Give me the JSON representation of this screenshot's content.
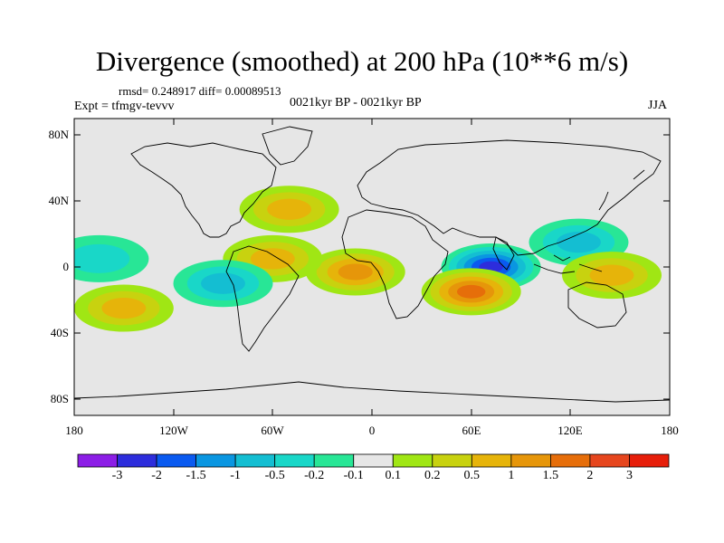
{
  "title": "Divergence (smoothed) at 200 hPa (10**6 m/s)",
  "stats": "rmsd= 0.248917 diff= 0.00089513",
  "experiment": "Expt = tfmgv-tevvv",
  "center_label": "0021kyr BP - 0021kyr BP",
  "season": "JJA",
  "lat_ticks": [
    "80N",
    "40N",
    "0",
    "40S",
    "80S"
  ],
  "lon_ticks": [
    "180",
    "120W",
    "60W",
    "0",
    "60E",
    "120E",
    "180"
  ],
  "colorbar": {
    "labels": [
      "-3",
      "-2",
      "-1.5",
      "-1",
      "-0.5",
      "-0.2",
      "-0.1",
      "0.1",
      "0.2",
      "0.5",
      "1",
      "1.5",
      "2",
      "3"
    ],
    "colors": [
      "#8c1ee6",
      "#2d2ddc",
      "#0a5af0",
      "#0a96e1",
      "#14bed2",
      "#19d7c8",
      "#28e696",
      "#e6e6e6",
      "#a0e614",
      "#c8d20f",
      "#e6b40a",
      "#e6960a",
      "#e66e0a",
      "#e6461e",
      "#e61e0a"
    ]
  },
  "chart_data": {
    "type": "heatmap",
    "title": "Divergence (smoothed) at 200 hPa (10**6 m/s)",
    "lon_range": [
      -180,
      180
    ],
    "lat_range": [
      -90,
      90
    ],
    "levels": [
      -3,
      -2,
      -1.5,
      -1,
      -0.5,
      -0.2,
      -0.1,
      0.1,
      0.2,
      0.5,
      1,
      1.5,
      2,
      3
    ],
    "features": [
      {
        "lon": 72,
        "lat": 0,
        "value": -2.2
      },
      {
        "lon": 60,
        "lat": -15,
        "value": 1.6
      },
      {
        "lon": -10,
        "lat": -3,
        "value": 1.3
      },
      {
        "lon": -60,
        "lat": 5,
        "value": 0.8
      },
      {
        "lon": -90,
        "lat": -10,
        "value": -0.6
      },
      {
        "lon": -150,
        "lat": -25,
        "value": 0.7
      },
      {
        "lon": -165,
        "lat": 5,
        "value": -0.3
      },
      {
        "lon": 125,
        "lat": 15,
        "value": -0.5
      },
      {
        "lon": 145,
        "lat": -5,
        "value": 0.6
      },
      {
        "lon": -50,
        "lat": 35,
        "value": 0.5
      }
    ]
  }
}
